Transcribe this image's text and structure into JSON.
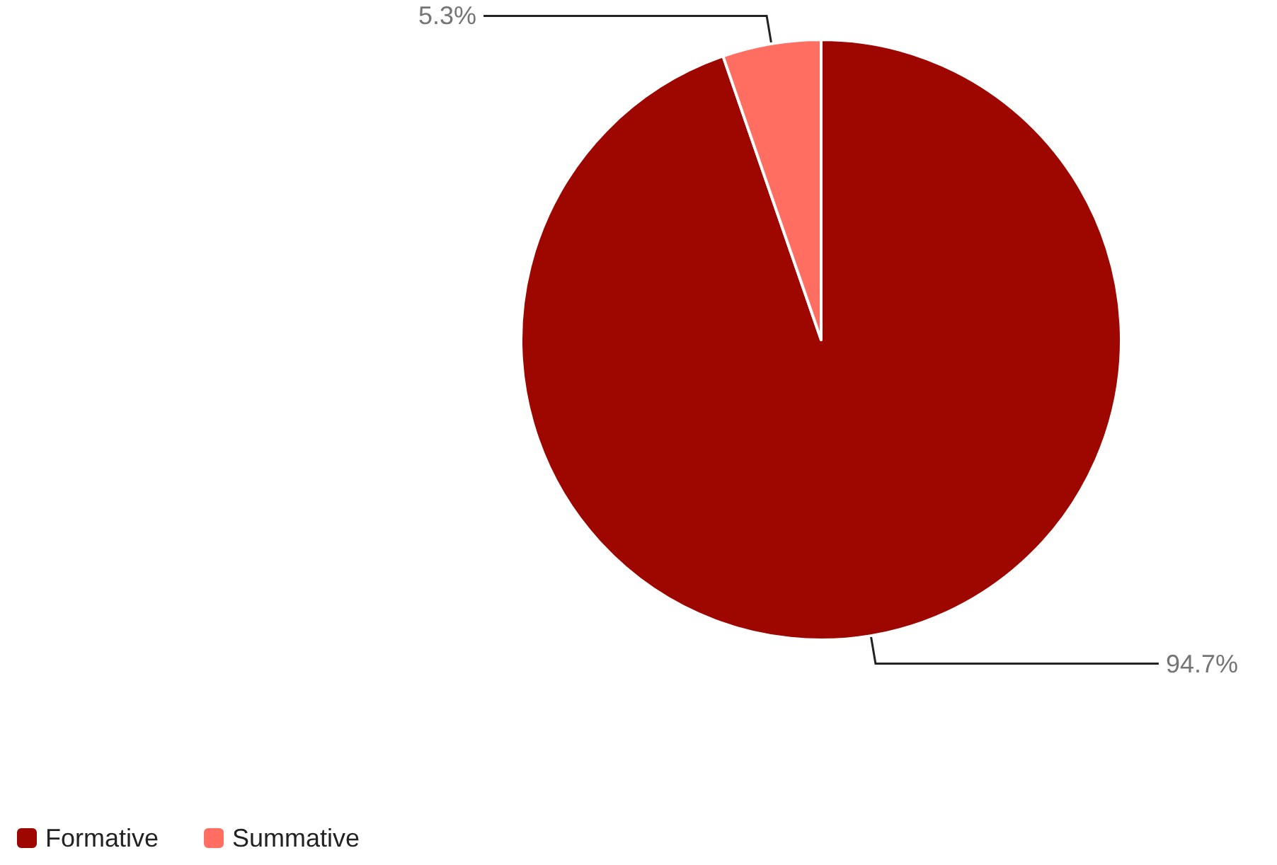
{
  "chart_data": {
    "type": "pie",
    "categories": [
      "Formative",
      "Summative"
    ],
    "values": [
      94.7,
      5.3
    ],
    "colors": [
      "#9e0600",
      "#ff6e61"
    ],
    "value_labels": [
      "94.7%",
      "5.3%"
    ],
    "legend": "bottom left"
  }
}
